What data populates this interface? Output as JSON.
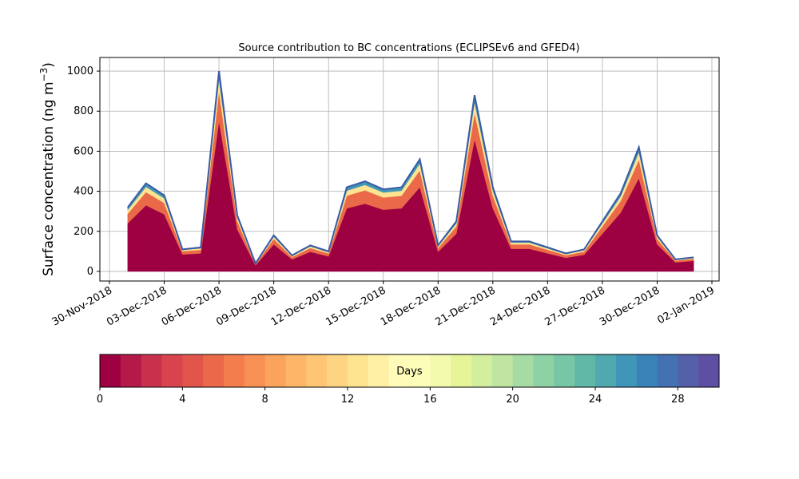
{
  "chart_data": {
    "type": "stacked_area",
    "title": "Source contribution to BC concentrations (ECLIPSEv6 and GFED4)",
    "ylabel": "Surface concentration (ng m",
    "ylabel_sup": "−3",
    "ylabel_end": ")",
    "x": [
      "2018-12-01",
      "2018-12-02",
      "2018-12-03",
      "2018-12-04",
      "2018-12-05",
      "2018-12-06",
      "2018-12-07",
      "2018-12-08",
      "2018-12-09",
      "2018-12-10",
      "2018-12-11",
      "2018-12-12",
      "2018-12-13",
      "2018-12-14",
      "2018-12-15",
      "2018-12-16",
      "2018-12-17",
      "2018-12-18",
      "2018-12-19",
      "2018-12-20",
      "2018-12-21",
      "2018-12-22",
      "2018-12-23",
      "2018-12-24",
      "2018-12-25",
      "2018-12-26",
      "2018-12-27",
      "2018-12-28",
      "2018-12-29",
      "2018-12-30",
      "2018-12-31",
      "2019-01-01"
    ],
    "series": [
      {
        "color": "#9e0142",
        "values": [
          240,
          330,
          285,
          85,
          90,
          750,
          210,
          30,
          135,
          60,
          98,
          75,
          315,
          338,
          308,
          315,
          420,
          98,
          188,
          660,
          315,
          113,
          113,
          90,
          68,
          83,
          188,
          293,
          465,
          135,
          45,
          53
        ]
      },
      {
        "color": "#ea6948",
        "values": [
          48,
          66,
          57,
          16,
          18,
          150,
          42,
          6,
          27,
          12,
          19,
          15,
          63,
          67,
          61,
          63,
          84,
          19,
          37,
          132,
          63,
          22,
          22,
          18,
          13,
          16,
          37,
          58,
          93,
          27,
          9,
          10
        ]
      },
      {
        "color": "#fee391",
        "values": [
          19,
          26,
          23,
          7,
          7,
          60,
          17,
          2,
          11,
          5,
          8,
          6,
          25,
          27,
          25,
          25,
          34,
          8,
          15,
          53,
          25,
          9,
          9,
          7,
          5,
          7,
          15,
          23,
          37,
          11,
          4,
          4
        ]
      },
      {
        "color": "#3f96b6",
        "values": [
          13,
          18,
          15,
          2,
          5,
          40,
          11,
          2,
          7,
          3,
          5,
          4,
          17,
          18,
          16,
          17,
          22,
          5,
          10,
          35,
          17,
          6,
          6,
          5,
          4,
          4,
          10,
          16,
          25,
          7,
          2,
          3
        ]
      }
    ],
    "line_color": "#3b5ba5",
    "xlim": [
      "2018-11-30",
      "2019-01-02"
    ],
    "xticks": [
      {
        "value": "2018-11-30",
        "label": "30-Nov-2018"
      },
      {
        "value": "2018-12-03",
        "label": "03-Dec-2018"
      },
      {
        "value": "2018-12-06",
        "label": "06-Dec-2018"
      },
      {
        "value": "2018-12-09",
        "label": "09-Dec-2018"
      },
      {
        "value": "2018-12-12",
        "label": "12-Dec-2018"
      },
      {
        "value": "2018-12-15",
        "label": "15-Dec-2018"
      },
      {
        "value": "2018-12-18",
        "label": "18-Dec-2018"
      },
      {
        "value": "2018-12-21",
        "label": "21-Dec-2018"
      },
      {
        "value": "2018-12-24",
        "label": "24-Dec-2018"
      },
      {
        "value": "2018-12-27",
        "label": "27-Dec-2018"
      },
      {
        "value": "2018-12-30",
        "label": "30-Dec-2018"
      },
      {
        "value": "2019-01-02",
        "label": "02-Jan-2019"
      }
    ],
    "ylim": [
      -48,
      1068
    ],
    "yticks": [
      0,
      200,
      400,
      600,
      800,
      1000
    ],
    "grid": true,
    "colorbar": {
      "label": "Days",
      "lim": [
        0,
        30
      ],
      "ticks": [
        0,
        4,
        8,
        12,
        16,
        20,
        24,
        28
      ],
      "colors": [
        "#9e0142",
        "#b41947",
        "#c9304b",
        "#d8434e",
        "#e1554b",
        "#ea6948",
        "#f47d4d",
        "#f88f53",
        "#fba25c",
        "#fdb567",
        "#fdc574",
        "#fed483",
        "#fee391",
        "#fff0a6",
        "#fffbb8",
        "#fbfdb9",
        "#f3faad",
        "#e6f598",
        "#d4ee9f",
        "#bfe5a0",
        "#a7dba4",
        "#8ed1a4",
        "#77c6a5",
        "#62b8a7",
        "#50a9af",
        "#3f96b6",
        "#3a83b9",
        "#4471b2",
        "#5460a7",
        "#5e4fa2"
      ]
    }
  }
}
